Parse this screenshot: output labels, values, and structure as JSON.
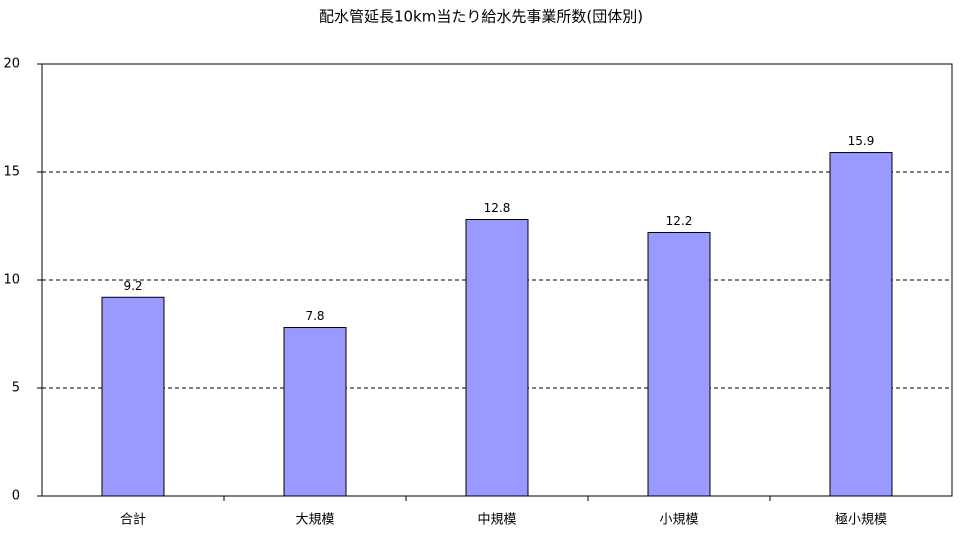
{
  "chart_data": {
    "type": "bar",
    "title": "配水管延長10km当たり給水先事業所数(団体別)",
    "categories": [
      "合計",
      "大規模",
      "中規模",
      "小規模",
      "極小規模"
    ],
    "values": [
      9.2,
      7.8,
      12.8,
      12.2,
      15.9
    ],
    "color": "#9999ff",
    "ylim": [
      0,
      20
    ],
    "yticks": [
      0,
      5,
      10,
      15,
      20
    ],
    "grid": true
  }
}
